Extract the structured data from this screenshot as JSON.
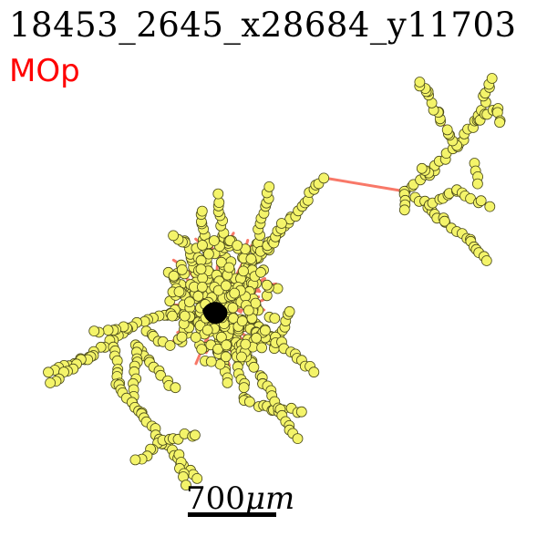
{
  "title": "18453_2645_x28684_y11703",
  "region": {
    "label": "MOp",
    "color": "#ff0000"
  },
  "scale_bar": {
    "label_num": "700",
    "label_unit": "μm"
  },
  "colors": {
    "branch": "#f87868",
    "node_fill": "#f4f46a",
    "node_stroke": "#4a4a1a",
    "soma": "#000000"
  }
}
